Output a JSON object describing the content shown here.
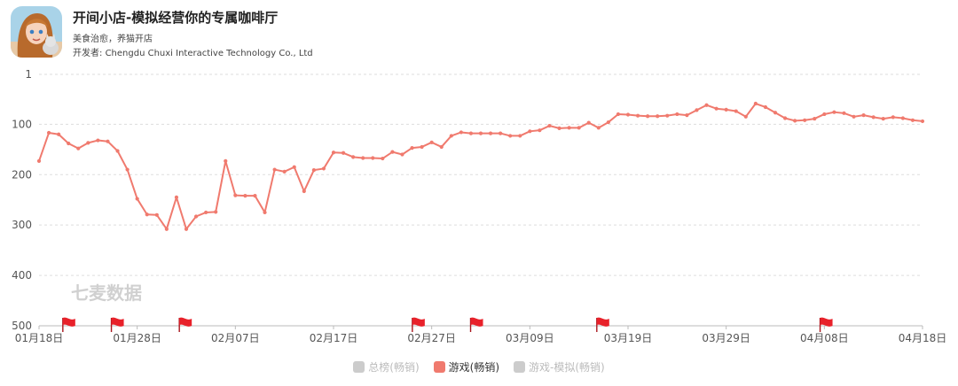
{
  "app": {
    "title": "开间小店-模拟经营你的专属咖啡厅",
    "subtitle": "美食治愈，养猫开店",
    "developer_label": "开发者: ",
    "developer": "Chengdu Chuxi Interactive Technology Co., Ltd",
    "icon": "girl-and-cat-app-icon"
  },
  "watermark": "七麦数据",
  "colors": {
    "line": "#f07a6e",
    "grid": "#dddddd",
    "flag": "#e8212a",
    "inactive": "#cccccc"
  },
  "legend": [
    {
      "label": "总榜(畅销)",
      "color": "#cccccc",
      "active": false
    },
    {
      "label": "游戏(畅销)",
      "color": "#f07a6e",
      "active": true
    },
    {
      "label": "游戏-模拟(畅销)",
      "color": "#cccccc",
      "active": false
    }
  ],
  "chart_data": {
    "type": "line",
    "y_reversed": true,
    "ylim": [
      1,
      500
    ],
    "yticks": [
      1,
      100,
      200,
      300,
      400,
      500
    ],
    "xlim": [
      "2024-01-18",
      "2024-04-18"
    ],
    "xticks": [
      "01月18日",
      "01月28日",
      "02月07日",
      "02月17日",
      "02月27日",
      "03月09日",
      "03月19日",
      "03月29日",
      "04月08日",
      "04月18日"
    ],
    "grid": true,
    "series": [
      {
        "name": "游戏(畅销)",
        "values": [
          173,
          117,
          120,
          138,
          148,
          137,
          132,
          134,
          153,
          190,
          248,
          279,
          280,
          308,
          245,
          308,
          283,
          275,
          274,
          173,
          241,
          242,
          242,
          275,
          190,
          194,
          185,
          233,
          191,
          188,
          156,
          157,
          165,
          167,
          167,
          168,
          155,
          160,
          147,
          145,
          136,
          145,
          123,
          116,
          118,
          118,
          118,
          118,
          123,
          123,
          114,
          112,
          103,
          108,
          107,
          107,
          97,
          107,
          96,
          80,
          81,
          83,
          84,
          84,
          83,
          80,
          82,
          72,
          62,
          69,
          71,
          74,
          85,
          59,
          66,
          77,
          88,
          93,
          92,
          89,
          80,
          76,
          78,
          85,
          82,
          86,
          89,
          86,
          88,
          92,
          94
        ]
      }
    ],
    "event_flags": [
      "2024-01-21",
      "2024-01-26",
      "2024-02-02",
      "2024-02-26",
      "2024-03-03",
      "2024-03-16",
      "2024-04-08"
    ]
  }
}
